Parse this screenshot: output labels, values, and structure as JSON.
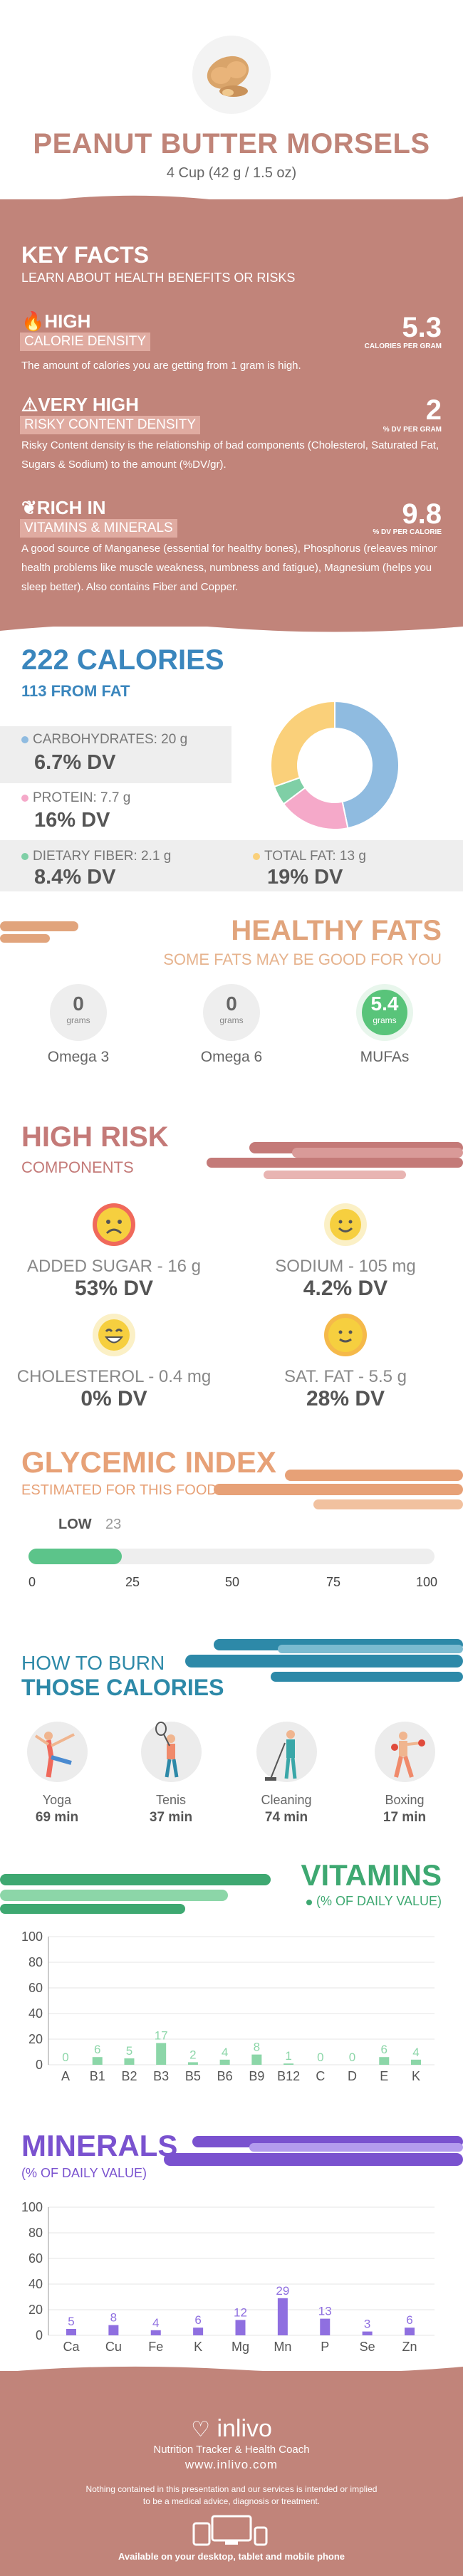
{
  "header": {
    "title": "PEANUT BUTTER MORSELS",
    "serving": "4 Cup (42 g / 1.5 oz)"
  },
  "key_facts": {
    "title": "KEY FACTS",
    "subtitle": "LEARN ABOUT HEALTH BENEFITS OR RISKS",
    "items": [
      {
        "level": "HIGH",
        "tag": "CALORIE DENSITY",
        "value": "5.3",
        "unit": "CALORIES PER GRAM",
        "icon": "flame-icon",
        "desc": "The amount of calories you are getting from 1 gram is high."
      },
      {
        "level": "VERY HIGH",
        "tag": "RISKY CONTENT DENSITY",
        "value": "2",
        "unit": "% DV PER GRAM",
        "icon": "warning-icon",
        "desc": "Risky Content density is the relationship of bad components (Cholesterol, Saturated Fat, Sugars & Sodium) to the amount (%DV/gr)."
      },
      {
        "level": "RICH  IN",
        "tag": "VITAMINS & MINERALS",
        "value": "9.8",
        "unit": "% DV PER CALORIE",
        "icon": "leaf-icon",
        "desc": "A good source of Manganese (essential for healthy bones), Phosphorus (releaves minor health problems like muscle weakness, numbness and fatigue), Magnesium (helps you sleep better). Also contains Fiber and Copper."
      }
    ]
  },
  "calories": {
    "title": "222 CALORIES",
    "from_fat": "113 FROM FAT",
    "macros": [
      {
        "label": "CARBOHYDRATES: 20 g",
        "dv": "6.7% DV",
        "color": "#8fbbe0"
      },
      {
        "label": "PROTEIN: 7.7 g",
        "dv": "16% DV",
        "color": "#f5a9c9"
      },
      {
        "label": "DIETARY FIBER: 2.1 g",
        "dv": "8.4% DV",
        "color": "#7fcfa6"
      },
      {
        "label": "TOTAL FAT: 13 g",
        "dv": "19% DV",
        "color": "#fad07a"
      }
    ],
    "donut": [
      {
        "name": "carbs",
        "value": 20,
        "color": "#8fbbe0"
      },
      {
        "name": "protein",
        "value": 7.7,
        "color": "#f5a9c9"
      },
      {
        "name": "fiber",
        "value": 2.1,
        "color": "#7fcfa6"
      },
      {
        "name": "fat",
        "value": 13,
        "color": "#fad07a"
      }
    ]
  },
  "healthy_fats": {
    "title": "HEALTHY FATS",
    "subtitle": "SOME FATS MAY BE GOOD FOR YOU",
    "items": [
      {
        "value": "0",
        "unit": "grams",
        "name": "Omega 3"
      },
      {
        "value": "0",
        "unit": "grams",
        "name": "Omega 6"
      },
      {
        "value": "5.4",
        "unit": "grams",
        "name": "MUFAs"
      }
    ]
  },
  "high_risk": {
    "title": "HIGH RISK",
    "subtitle": "COMPONENTS",
    "items": [
      {
        "name": "ADDED SUGAR - 16 g",
        "dv": "53% DV",
        "face": "sad",
        "color": "#f0695b"
      },
      {
        "name": "SODIUM - 105 mg",
        "dv": "4.2% DV",
        "face": "happy",
        "color": "#f6cf3f"
      },
      {
        "name": "CHOLESTEROL - 0.4 mg",
        "dv": "0% DV",
        "face": "grin",
        "color": "#f6cf3f"
      },
      {
        "name": "SAT. FAT - 5.5 g",
        "dv": "28% DV",
        "face": "smile",
        "color": "#f5b94a"
      }
    ]
  },
  "glycemic": {
    "title": "GLYCEMIC INDEX",
    "subtitle": "ESTIMATED FOR THIS FOOD",
    "level": "LOW",
    "value": "23",
    "fraction": 0.23,
    "ticks": [
      "0",
      "25",
      "50",
      "75",
      "100"
    ]
  },
  "burn": {
    "title1": "HOW TO BURN",
    "title2": "THOSE CALORIES",
    "activities": [
      {
        "name": "Yoga",
        "minutes": "69 min",
        "icon": "yoga-icon"
      },
      {
        "name": "Tenis",
        "minutes": "37 min",
        "icon": "tennis-icon"
      },
      {
        "name": "Cleaning",
        "minutes": "74 min",
        "icon": "cleaning-icon"
      },
      {
        "name": "Boxing",
        "minutes": "17 min",
        "icon": "boxing-icon"
      }
    ]
  },
  "vitamins": {
    "title": "VITAMINS",
    "subtitle": "(% OF DAILY VALUE)",
    "color": "#8cd6a8",
    "label_color": "#8cd6a8",
    "chart_data": {
      "type": "bar",
      "categories": [
        "A",
        "B1",
        "B2",
        "B3",
        "B5",
        "B6",
        "B9",
        "B12",
        "C",
        "D",
        "E",
        "K"
      ],
      "values": [
        0,
        6,
        5,
        17,
        2,
        4,
        8,
        1,
        0,
        0,
        6,
        4
      ],
      "ylim": [
        0,
        100
      ],
      "yticks": [
        "0",
        "20",
        "40",
        "60",
        "80",
        "100"
      ]
    }
  },
  "minerals": {
    "title": "MINERALS",
    "subtitle": "(% OF DAILY VALUE)",
    "color": "#8f6fe0",
    "label_color": "#8f6fe0",
    "chart_data": {
      "type": "bar",
      "categories": [
        "Ca",
        "Cu",
        "Fe",
        "K",
        "Mg",
        "Mn",
        "P",
        "Se",
        "Zn"
      ],
      "values": [
        5,
        8,
        4,
        6,
        12,
        29,
        13,
        3,
        6
      ],
      "ylim": [
        0,
        100
      ],
      "yticks": [
        "0",
        "20",
        "40",
        "60",
        "80",
        "100"
      ]
    }
  },
  "footer": {
    "brand": "inlivo",
    "tagline": "Nutrition Tracker & Health Coach",
    "url": "www.inlivo.com",
    "disclaimer1": "Nothing contained in this presentation and our services is intended or implied",
    "disclaimer2": "to be a medical advice, diagnosis or treatment.",
    "available": "Available on your desktop, tablet and mobile phone"
  }
}
